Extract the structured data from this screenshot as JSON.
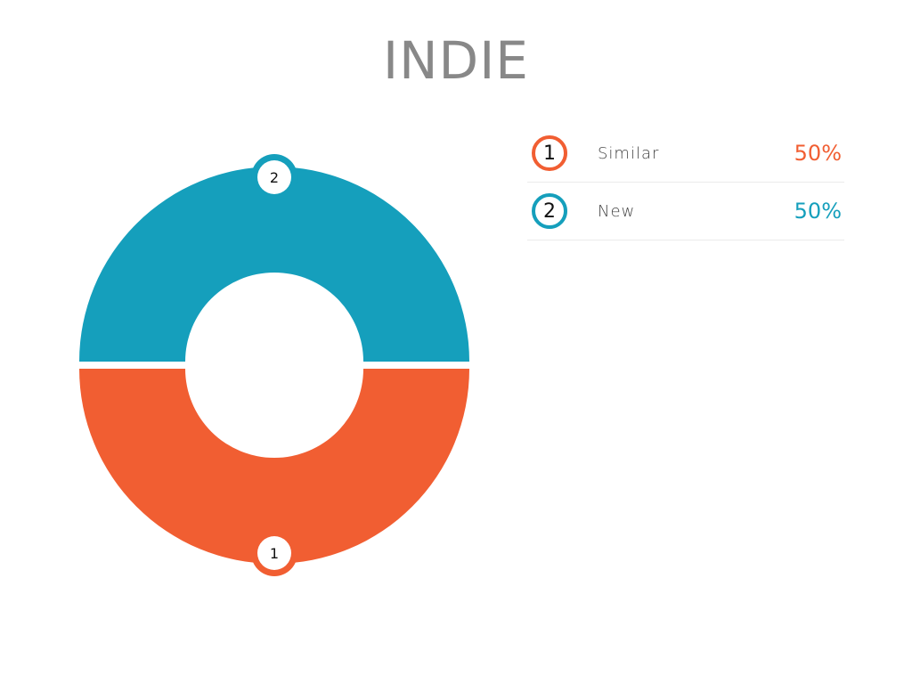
{
  "chart_data": {
    "type": "pie",
    "title": "INDIE",
    "donut": true,
    "categories": [
      "Similar",
      "New"
    ],
    "values": [
      50,
      50
    ],
    "percent_labels": [
      "50%",
      "50%"
    ],
    "markers": [
      "1",
      "2"
    ],
    "colors": [
      "#f15e32",
      "#159fbc"
    ],
    "legend_placement": "right"
  }
}
